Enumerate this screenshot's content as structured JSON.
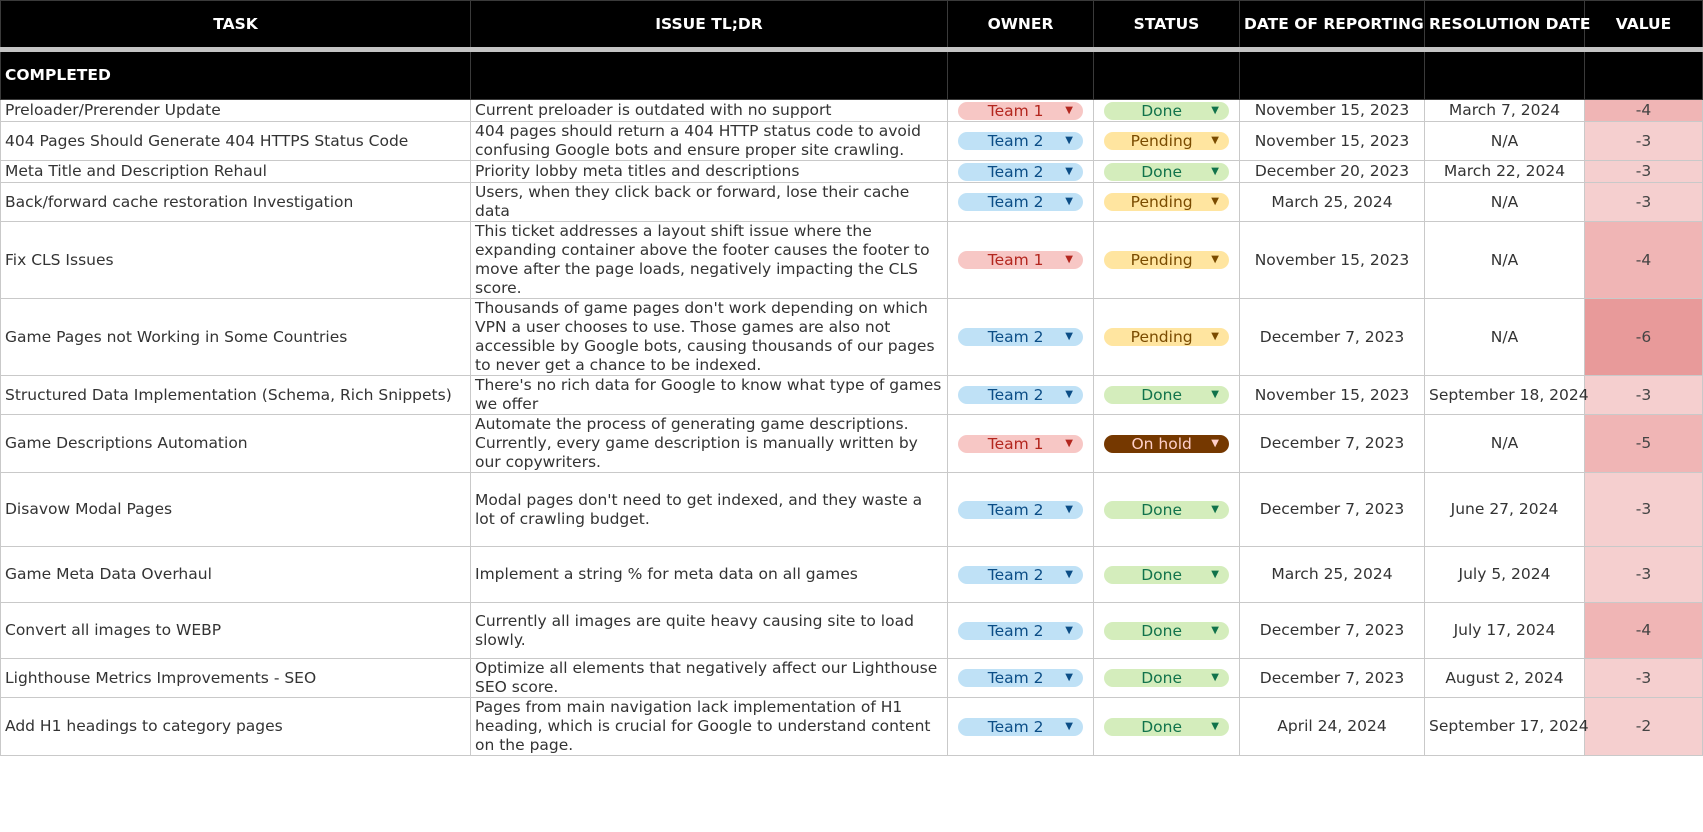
{
  "header": {
    "task": "TASK",
    "issue": "ISSUE TL;DR",
    "owner": "OWNER",
    "status": "STATUS",
    "reported": "DATE OF REPORTING",
    "resolved": "RESOLUTION DATE",
    "value": "VALUE"
  },
  "section_label": "COMPLETED",
  "colors": {
    "team_1": "#f7c7c5",
    "team_2": "#bfe1f6",
    "done": "#d4edbc",
    "pending": "#ffe5a0",
    "on_hold": "#753800",
    "value_light": "#f5cfcf",
    "value_mid": "#f0b5b5",
    "value_dark": "#e89a9a"
  },
  "rows": [
    {
      "task": "Preloader/Prerender Update",
      "issue": "Current preloader is outdated with no support",
      "owner": "Team 1",
      "status": "Done",
      "reported": "November 15, 2023",
      "resolved": "March 7, 2024",
      "value": "-4"
    },
    {
      "task": "404 Pages Should Generate 404 HTTPS Status Code",
      "issue": "404 pages should return a 404 HTTP status code to avoid confusing Google bots and ensure proper site crawling.",
      "owner": "Team 2",
      "status": "Pending",
      "reported": "November 15, 2023",
      "resolved": "N/A",
      "value": "-3"
    },
    {
      "task": "Meta Title and Description Rehaul",
      "issue": "Priority lobby meta titles and descriptions",
      "owner": "Team 2",
      "status": "Done",
      "reported": "December 20, 2023",
      "resolved": "March 22, 2024",
      "value": "-3"
    },
    {
      "task": "Back/forward cache restoration Investigation",
      "issue": "Users, when they click back or forward, lose their cache data",
      "owner": "Team 2",
      "status": "Pending",
      "reported": "March 25, 2024",
      "resolved": "N/A",
      "value": "-3"
    },
    {
      "task": "Fix CLS Issues",
      "issue": "This ticket addresses a layout shift issue where the expanding container above the footer causes the footer to move after the page loads, negatively impacting the CLS score.",
      "owner": "Team 1",
      "status": "Pending",
      "reported": "November 15, 2023",
      "resolved": "N/A",
      "value": "-4"
    },
    {
      "task": "Game Pages not Working in Some Countries",
      "issue": "Thousands of game pages don't work depending on which VPN a user chooses to use. Those games are also not accessible by Google bots, causing thousands of our pages to never get a chance to be indexed.",
      "owner": "Team 2",
      "status": "Pending",
      "reported": "December 7, 2023",
      "resolved": "N/A",
      "value": "-6"
    },
    {
      "task": "Structured Data Implementation (Schema, Rich Snippets)",
      "issue": "There's no rich data for Google to know what type of games we offer",
      "owner": "Team 2",
      "status": "Done",
      "reported": "November 15, 2023",
      "resolved": "September 18, 2024",
      "value": "-3"
    },
    {
      "task": "Game Descriptions Automation",
      "issue": "Automate the process of generating game descriptions. Currently, every game description is manually written by our copywriters.",
      "owner": "Team 1",
      "status": "On hold",
      "reported": "December 7, 2023",
      "resolved": "N/A",
      "value": "-5"
    },
    {
      "task": "Disavow Modal Pages",
      "issue": "Modal pages don't need to get indexed, and they waste a lot of crawling budget.",
      "owner": "Team 2",
      "status": "Done",
      "reported": "December 7, 2023",
      "resolved": "June 27, 2024",
      "value": "-3"
    },
    {
      "task": "Game Meta Data Overhaul",
      "issue": "Implement a string % for meta data on all games",
      "owner": "Team 2",
      "status": "Done",
      "reported": "March 25, 2024",
      "resolved": "July 5, 2024",
      "value": "-3"
    },
    {
      "task": "Convert all images to WEBP",
      "issue": "Currently all images are quite heavy causing site to load slowly.",
      "owner": "Team 2",
      "status": "Done",
      "reported": "December 7, 2023",
      "resolved": "July 17, 2024",
      "value": "-4"
    },
    {
      "task": "Lighthouse Metrics Improvements - SEO",
      "issue": "Optimize all elements that negatively affect our Lighthouse SEO score.",
      "owner": "Team 2",
      "status": "Done",
      "reported": "December 7, 2023",
      "resolved": "August 2, 2024",
      "value": "-3"
    },
    {
      "task": "Add H1 headings to category pages",
      "issue": "Pages from main navigation lack implementation of H1 heading, which is crucial for Google to understand content on the page.",
      "owner": "Team 2",
      "status": "Done",
      "reported": "April 24, 2024",
      "resolved": "September 17, 2024",
      "value": "-2"
    }
  ]
}
